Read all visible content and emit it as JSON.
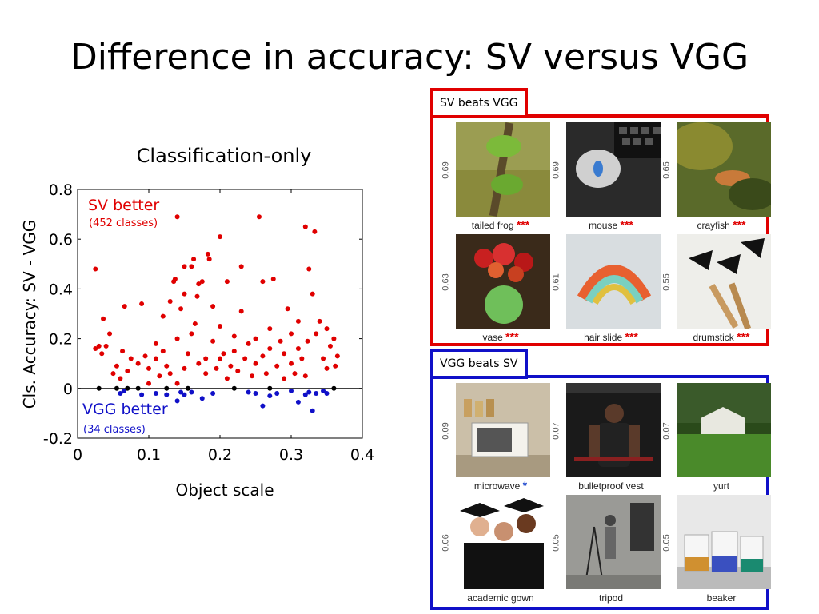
{
  "slide": {
    "title": "Difference in accuracy: SV versus VGG"
  },
  "chart_data": {
    "type": "scatter",
    "title": "Classification-only",
    "xlabel": "Object scale",
    "ylabel": "Cls. Accuracy: SV - VGG",
    "xlim": [
      0,
      0.4
    ],
    "ylim": [
      -0.2,
      0.8
    ],
    "x_ticks": [
      "0",
      "0.1",
      "0.2",
      "0.3",
      "0.4"
    ],
    "y_ticks": [
      "-0.2",
      "0",
      "0.2",
      "0.4",
      "0.6",
      "0.8"
    ],
    "zero_line": true,
    "grid": false,
    "annotations": {
      "sv_better": "SV better",
      "sv_better_count": "(452 classes)",
      "vgg_better": "VGG better",
      "vgg_better_count": "(34 classes)"
    },
    "series": [
      {
        "color": "#e00000",
        "points": [
          [
            0.025,
            0.48
          ],
          [
            0.025,
            0.16
          ],
          [
            0.03,
            0.17
          ],
          [
            0.034,
            0.14
          ],
          [
            0.036,
            0.28
          ],
          [
            0.04,
            0.17
          ],
          [
            0.045,
            0.22
          ],
          [
            0.05,
            0.06
          ],
          [
            0.055,
            0.09
          ],
          [
            0.06,
            0.04
          ],
          [
            0.063,
            0.15
          ],
          [
            0.066,
            0.33
          ],
          [
            0.07,
            0.07
          ],
          [
            0.075,
            0.12
          ],
          [
            0.085,
            0.1
          ],
          [
            0.09,
            0.34
          ],
          [
            0.095,
            0.13
          ],
          [
            0.1,
            0.02
          ],
          [
            0.1,
            0.08
          ],
          [
            0.11,
            0.12
          ],
          [
            0.11,
            0.18
          ],
          [
            0.115,
            0.05
          ],
          [
            0.12,
            0.29
          ],
          [
            0.12,
            0.15
          ],
          [
            0.125,
            0.09
          ],
          [
            0.13,
            0.06
          ],
          [
            0.13,
            0.35
          ],
          [
            0.135,
            0.43
          ],
          [
            0.137,
            0.44
          ],
          [
            0.14,
            0.69
          ],
          [
            0.14,
            0.2
          ],
          [
            0.14,
            0.02
          ],
          [
            0.145,
            0.32
          ],
          [
            0.15,
            0.08
          ],
          [
            0.15,
            0.49
          ],
          [
            0.15,
            0.38
          ],
          [
            0.155,
            0.14
          ],
          [
            0.16,
            0.49
          ],
          [
            0.16,
            0.22
          ],
          [
            0.163,
            0.52
          ],
          [
            0.165,
            0.26
          ],
          [
            0.168,
            0.37
          ],
          [
            0.17,
            0.1
          ],
          [
            0.17,
            0.42
          ],
          [
            0.175,
            0.43
          ],
          [
            0.18,
            0.12
          ],
          [
            0.18,
            0.06
          ],
          [
            0.183,
            0.54
          ],
          [
            0.185,
            0.52
          ],
          [
            0.19,
            0.33
          ],
          [
            0.19,
            0.19
          ],
          [
            0.195,
            0.08
          ],
          [
            0.2,
            0.25
          ],
          [
            0.2,
            0.12
          ],
          [
            0.2,
            0.61
          ],
          [
            0.205,
            0.14
          ],
          [
            0.21,
            0.43
          ],
          [
            0.21,
            0.04
          ],
          [
            0.215,
            0.09
          ],
          [
            0.22,
            0.21
          ],
          [
            0.22,
            0.15
          ],
          [
            0.225,
            0.07
          ],
          [
            0.23,
            0.49
          ],
          [
            0.23,
            0.31
          ],
          [
            0.235,
            0.12
          ],
          [
            0.24,
            0.18
          ],
          [
            0.245,
            0.05
          ],
          [
            0.25,
            0.2
          ],
          [
            0.25,
            0.1
          ],
          [
            0.255,
            0.69
          ],
          [
            0.26,
            0.43
          ],
          [
            0.26,
            0.13
          ],
          [
            0.265,
            0.06
          ],
          [
            0.27,
            0.24
          ],
          [
            0.27,
            0.16
          ],
          [
            0.275,
            0.44
          ],
          [
            0.28,
            0.09
          ],
          [
            0.285,
            0.19
          ],
          [
            0.29,
            0.04
          ],
          [
            0.29,
            0.14
          ],
          [
            0.295,
            0.32
          ],
          [
            0.3,
            0.1
          ],
          [
            0.3,
            0.22
          ],
          [
            0.305,
            0.06
          ],
          [
            0.31,
            0.16
          ],
          [
            0.31,
            0.27
          ],
          [
            0.315,
            0.12
          ],
          [
            0.32,
            0.05
          ],
          [
            0.32,
            0.65
          ],
          [
            0.323,
            0.19
          ],
          [
            0.325,
            0.48
          ],
          [
            0.33,
            0.38
          ],
          [
            0.333,
            0.63
          ],
          [
            0.335,
            0.22
          ],
          [
            0.34,
            0.27
          ],
          [
            0.345,
            0.12
          ],
          [
            0.35,
            0.08
          ],
          [
            0.35,
            0.24
          ],
          [
            0.355,
            0.17
          ],
          [
            0.36,
            0.2
          ],
          [
            0.362,
            0.09
          ],
          [
            0.365,
            0.13
          ]
        ]
      },
      {
        "color": "#1010c8",
        "points": [
          [
            0.06,
            -0.02
          ],
          [
            0.065,
            -0.01
          ],
          [
            0.09,
            -0.025
          ],
          [
            0.11,
            -0.02
          ],
          [
            0.125,
            -0.025
          ],
          [
            0.14,
            -0.05
          ],
          [
            0.145,
            -0.015
          ],
          [
            0.15,
            -0.025
          ],
          [
            0.16,
            -0.015
          ],
          [
            0.175,
            -0.04
          ],
          [
            0.19,
            -0.02
          ],
          [
            0.24,
            -0.015
          ],
          [
            0.25,
            -0.02
          ],
          [
            0.26,
            -0.07
          ],
          [
            0.27,
            -0.03
          ],
          [
            0.28,
            -0.02
          ],
          [
            0.3,
            -0.01
          ],
          [
            0.31,
            -0.055
          ],
          [
            0.32,
            -0.025
          ],
          [
            0.325,
            -0.015
          ],
          [
            0.33,
            -0.09
          ],
          [
            0.335,
            -0.02
          ],
          [
            0.345,
            -0.01
          ],
          [
            0.35,
            -0.02
          ]
        ]
      },
      {
        "color": "#000000",
        "points": [
          [
            0.03,
            0.0
          ],
          [
            0.055,
            0.0
          ],
          [
            0.07,
            0.0
          ],
          [
            0.085,
            0.0
          ],
          [
            0.125,
            0.0
          ],
          [
            0.155,
            0.0
          ],
          [
            0.22,
            0.0
          ],
          [
            0.27,
            0.0
          ],
          [
            0.36,
            0.0
          ]
        ]
      }
    ]
  },
  "sv_panel": {
    "label": "SV beats VGG",
    "items": [
      {
        "score": "0.69",
        "label": "tailed frog",
        "stars": "***"
      },
      {
        "score": "0.69",
        "label": "mouse",
        "stars": "***"
      },
      {
        "score": "0.65",
        "label": "crayfish",
        "stars": "***"
      },
      {
        "score": "0.63",
        "label": "vase",
        "stars": "***"
      },
      {
        "score": "0.61",
        "label": "hair slide",
        "stars": "***"
      },
      {
        "score": "0.55",
        "label": "drumstick",
        "stars": "***"
      }
    ]
  },
  "vgg_panel": {
    "label": "VGG beats SV",
    "items": [
      {
        "score": "0.09",
        "label": "microwave",
        "stars": "*"
      },
      {
        "score": "0.07",
        "label": "bulletproof vest",
        "stars": ""
      },
      {
        "score": "0.07",
        "label": "yurt",
        "stars": ""
      },
      {
        "score": "0.06",
        "label": "academic gown",
        "stars": ""
      },
      {
        "score": "0.05",
        "label": "tripod",
        "stars": ""
      },
      {
        "score": "0.05",
        "label": "beaker",
        "stars": ""
      }
    ]
  }
}
